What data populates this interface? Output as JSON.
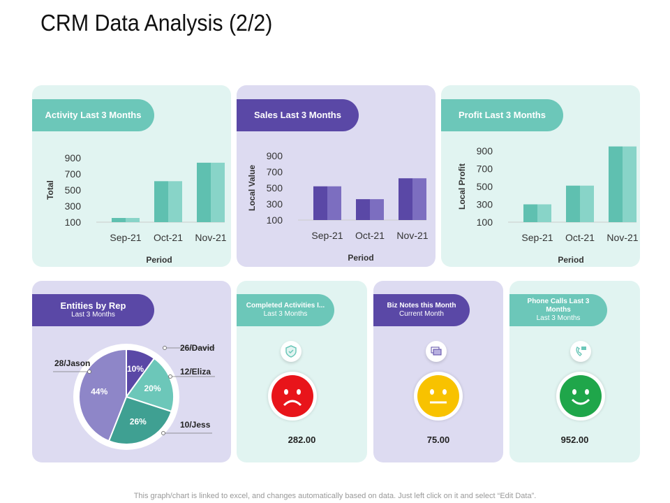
{
  "title": "CRM Data Analysis (2/2)",
  "footer": "This graph/chart is linked to excel, and changes automatically based on data. Just left click on it and select “Edit Data”.",
  "colors": {
    "teal": "#6cc7b9",
    "purple": "#5a48a6",
    "red": "#e8141a",
    "yellow": "#f8c200",
    "green": "#1fa64a"
  },
  "chart_data": [
    {
      "type": "bar",
      "title": "Activity Last 3 Months",
      "categories": [
        "Sep-21",
        "Oct-21",
        "Nov-21"
      ],
      "values": [
        150,
        610,
        840
      ],
      "xlabel": "Period",
      "ylabel": "Total",
      "yticks": [
        "100",
        "300",
        "500",
        "700",
        "900"
      ],
      "ylim": [
        100,
        900
      ]
    },
    {
      "type": "bar",
      "title": "Sales Last 3 Months",
      "categories": [
        "Sep-21",
        "Oct-21",
        "Nov-21"
      ],
      "values": [
        520,
        360,
        620
      ],
      "xlabel": "Period",
      "ylabel": "Local Value",
      "yticks": [
        "100",
        "300",
        "500",
        "700",
        "900"
      ],
      "ylim": [
        100,
        900
      ]
    },
    {
      "type": "bar",
      "title": "Profit Last 3 Months",
      "categories": [
        "Sep-21",
        "Oct-21",
        "Nov-21"
      ],
      "values": [
        300,
        510,
        950
      ],
      "xlabel": "Period",
      "ylabel": "Local Profit",
      "yticks": [
        "100",
        "300",
        "500",
        "700",
        "900"
      ],
      "ylim": [
        100,
        900
      ]
    },
    {
      "type": "pie",
      "title": "Entities by Rep",
      "subtitle": "Last 3 Months",
      "slices": [
        {
          "label": "26/David",
          "value": 10,
          "pct": "10%"
        },
        {
          "label": "12/Eliza",
          "value": 20,
          "pct": "20%"
        },
        {
          "label": "10/Jess",
          "value": 26,
          "pct": "26%"
        },
        {
          "label": "28/Jason",
          "value": 44,
          "pct": "44%"
        }
      ]
    }
  ],
  "kpis": [
    {
      "title": "Completed Activities I...",
      "sub": "Last 3 Months",
      "value": "282.00",
      "icon": "shield-check-icon",
      "mood": "sad"
    },
    {
      "title": "Biz Notes this Month",
      "sub": "Current Month",
      "value": "75.00",
      "icon": "notes-icon",
      "mood": "neutral"
    },
    {
      "title": "Phone Calls Last 3 Months",
      "sub": "Last 3 Months",
      "value": "952.00",
      "icon": "phone-icon",
      "mood": "happy"
    }
  ]
}
